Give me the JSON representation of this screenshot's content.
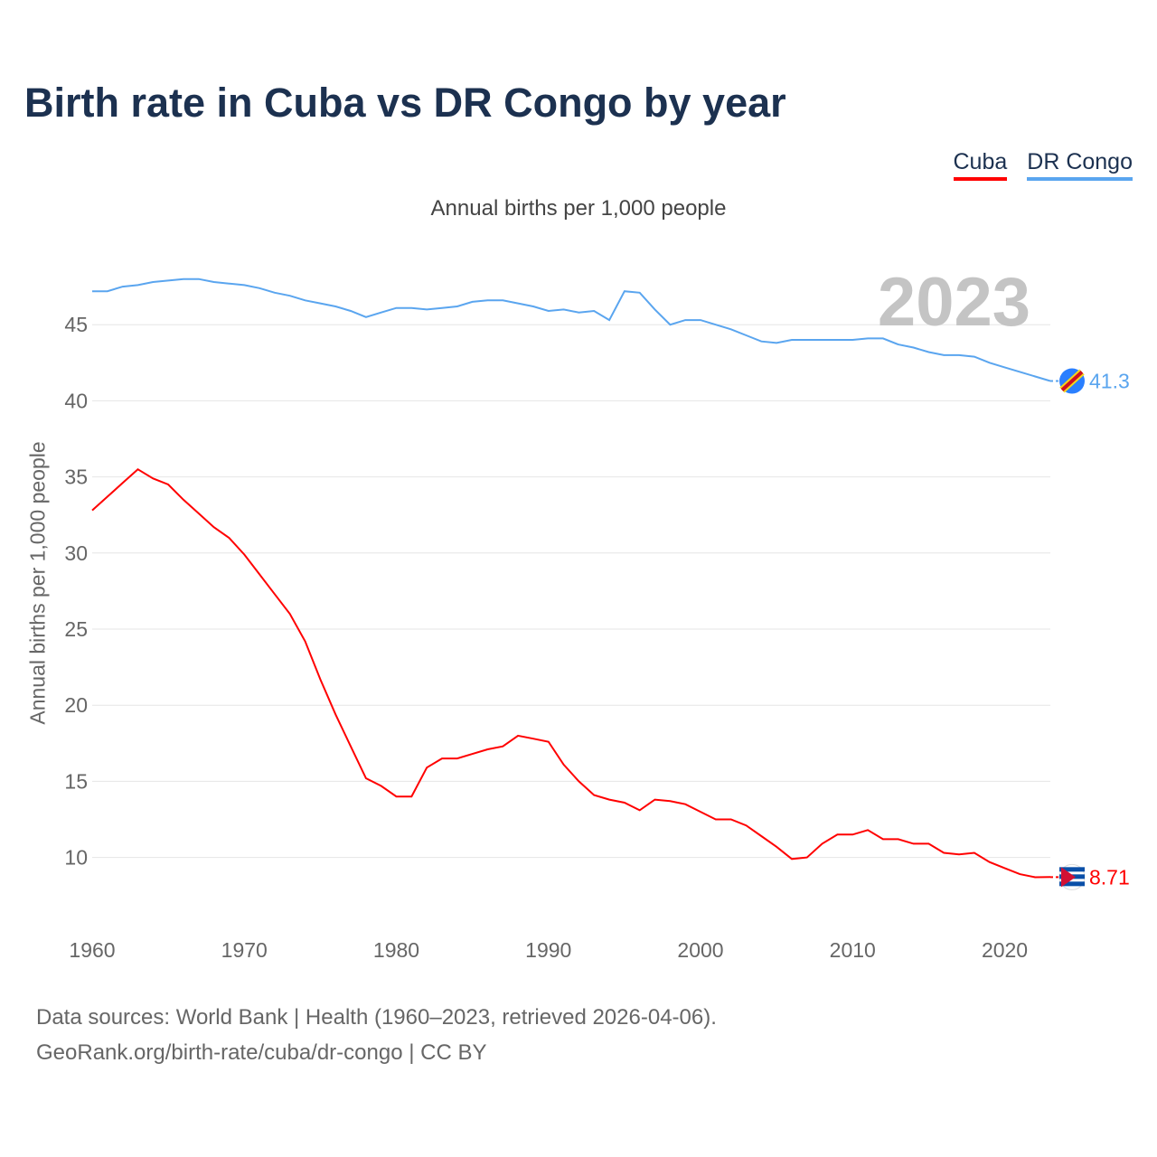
{
  "title": "Birth rate in Cuba vs DR Congo by year",
  "legend": [
    {
      "name": "Cuba",
      "color": "#ff0000"
    },
    {
      "name": "DR Congo",
      "color": "#5aa5ef"
    }
  ],
  "source_line1": "Data sources: World Bank | Health (1960–2023, retrieved 2026-04-06).",
  "source_line2": "GeoRank.org/birth-rate/cuba/dr-congo | CC BY",
  "chart_data": {
    "type": "line",
    "title": "Birth rate in Cuba vs DR Congo by year",
    "subtitle": "Annual births per 1,000 people",
    "xlabel": "",
    "ylabel": "Annual births per 1,000 people",
    "year_watermark": "2023",
    "xlim": [
      1960,
      2023
    ],
    "ylim": [
      5,
      50
    ],
    "xticks": [
      1960,
      1970,
      1980,
      1990,
      2000,
      2010,
      2020
    ],
    "yticks": [
      10,
      15,
      20,
      25,
      30,
      35,
      40,
      45
    ],
    "x_start": 1960,
    "series": [
      {
        "name": "DR Congo",
        "color": "#5aa5ef",
        "end_label": "41.3",
        "values": [
          47.2,
          47.2,
          47.5,
          47.6,
          47.8,
          47.9,
          48.0,
          48.0,
          47.8,
          47.7,
          47.6,
          47.4,
          47.1,
          46.9,
          46.6,
          46.4,
          46.2,
          45.9,
          45.5,
          45.8,
          46.1,
          46.1,
          46.0,
          46.1,
          46.2,
          46.5,
          46.6,
          46.6,
          46.4,
          46.2,
          45.9,
          46.0,
          45.8,
          45.9,
          45.3,
          47.2,
          47.1,
          46.0,
          45.0,
          45.3,
          45.3,
          45.0,
          44.7,
          44.3,
          43.9,
          43.8,
          44.0,
          44.0,
          44.0,
          44.0,
          44.0,
          44.1,
          44.1,
          43.7,
          43.5,
          43.2,
          43.0,
          43.0,
          42.9,
          42.5,
          42.2,
          41.9,
          41.6,
          41.3
        ]
      },
      {
        "name": "Cuba",
        "color": "#ff0000",
        "end_label": "8.71",
        "values": [
          32.8,
          33.7,
          34.6,
          35.5,
          34.9,
          34.5,
          33.5,
          32.6,
          31.7,
          31.0,
          29.9,
          28.6,
          27.3,
          26.0,
          24.2,
          21.7,
          19.4,
          17.3,
          15.2,
          14.7,
          14.0,
          14.0,
          15.9,
          16.5,
          16.5,
          16.8,
          17.1,
          17.3,
          18.0,
          17.8,
          17.6,
          16.1,
          15.0,
          14.1,
          13.8,
          13.6,
          13.1,
          13.8,
          13.7,
          13.5,
          13.0,
          12.5,
          12.5,
          12.1,
          11.4,
          10.7,
          9.9,
          10.0,
          10.9,
          11.5,
          11.5,
          11.8,
          11.2,
          11.2,
          10.9,
          10.9,
          10.3,
          10.2,
          10.3,
          9.7,
          9.3,
          8.9,
          8.7,
          8.71
        ]
      }
    ]
  }
}
